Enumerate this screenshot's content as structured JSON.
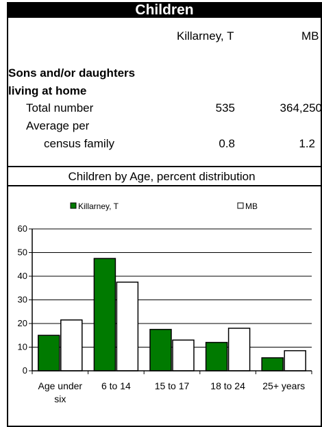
{
  "header": {
    "title": "Children"
  },
  "columns": [
    "Killarney, T",
    "MB"
  ],
  "section": {
    "label_line1": "Sons and/or daughters",
    "label_line2": "living at home"
  },
  "rows": [
    {
      "label": "Total number",
      "values": [
        "535",
        "364,250"
      ]
    },
    {
      "label_line1": "Average per",
      "label_line2": "census family",
      "values": [
        "0.8",
        "1.2"
      ]
    }
  ],
  "chart_data": {
    "type": "bar",
    "title": "Children by Age, percent distribution",
    "categories": [
      "Age under six",
      "6 to 14",
      "15 to 17",
      "18 to 24",
      "25+ years"
    ],
    "category_lines": [
      [
        "Age under",
        "six"
      ],
      [
        "6 to 14"
      ],
      [
        "15 to 17"
      ],
      [
        "18 to 24"
      ],
      [
        "25+ years"
      ]
    ],
    "series": [
      {
        "name": "Killarney, T",
        "values": [
          15,
          47.5,
          17.5,
          12,
          5.5
        ],
        "color": "#007a00"
      },
      {
        "name": "MB",
        "values": [
          21.5,
          37.5,
          13,
          18,
          8.5
        ],
        "color": "#ffffff"
      }
    ],
    "yticks": [
      "0",
      "10",
      "20",
      "30",
      "40",
      "50",
      "60"
    ],
    "ylim": [
      0,
      60
    ],
    "grid": true,
    "legend_position": "top"
  }
}
